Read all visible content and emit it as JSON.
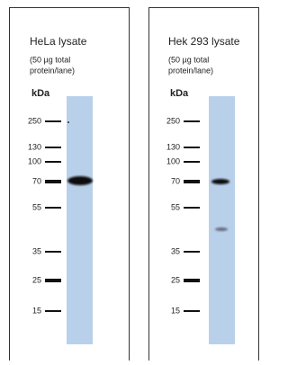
{
  "panels": [
    {
      "title": "HeLa lysate",
      "note": [
        "(50 µg total",
        "protein/lane)"
      ],
      "unit": "kDa",
      "markers": [
        250,
        130,
        100,
        70,
        55,
        35,
        25,
        15
      ]
    },
    {
      "title": "Hek 293 lysate",
      "note": [
        "(50 µg total",
        "protein/lane)"
      ],
      "unit": "kDa",
      "markers": [
        250,
        130,
        100,
        70,
        55,
        35,
        25,
        15
      ]
    }
  ]
}
